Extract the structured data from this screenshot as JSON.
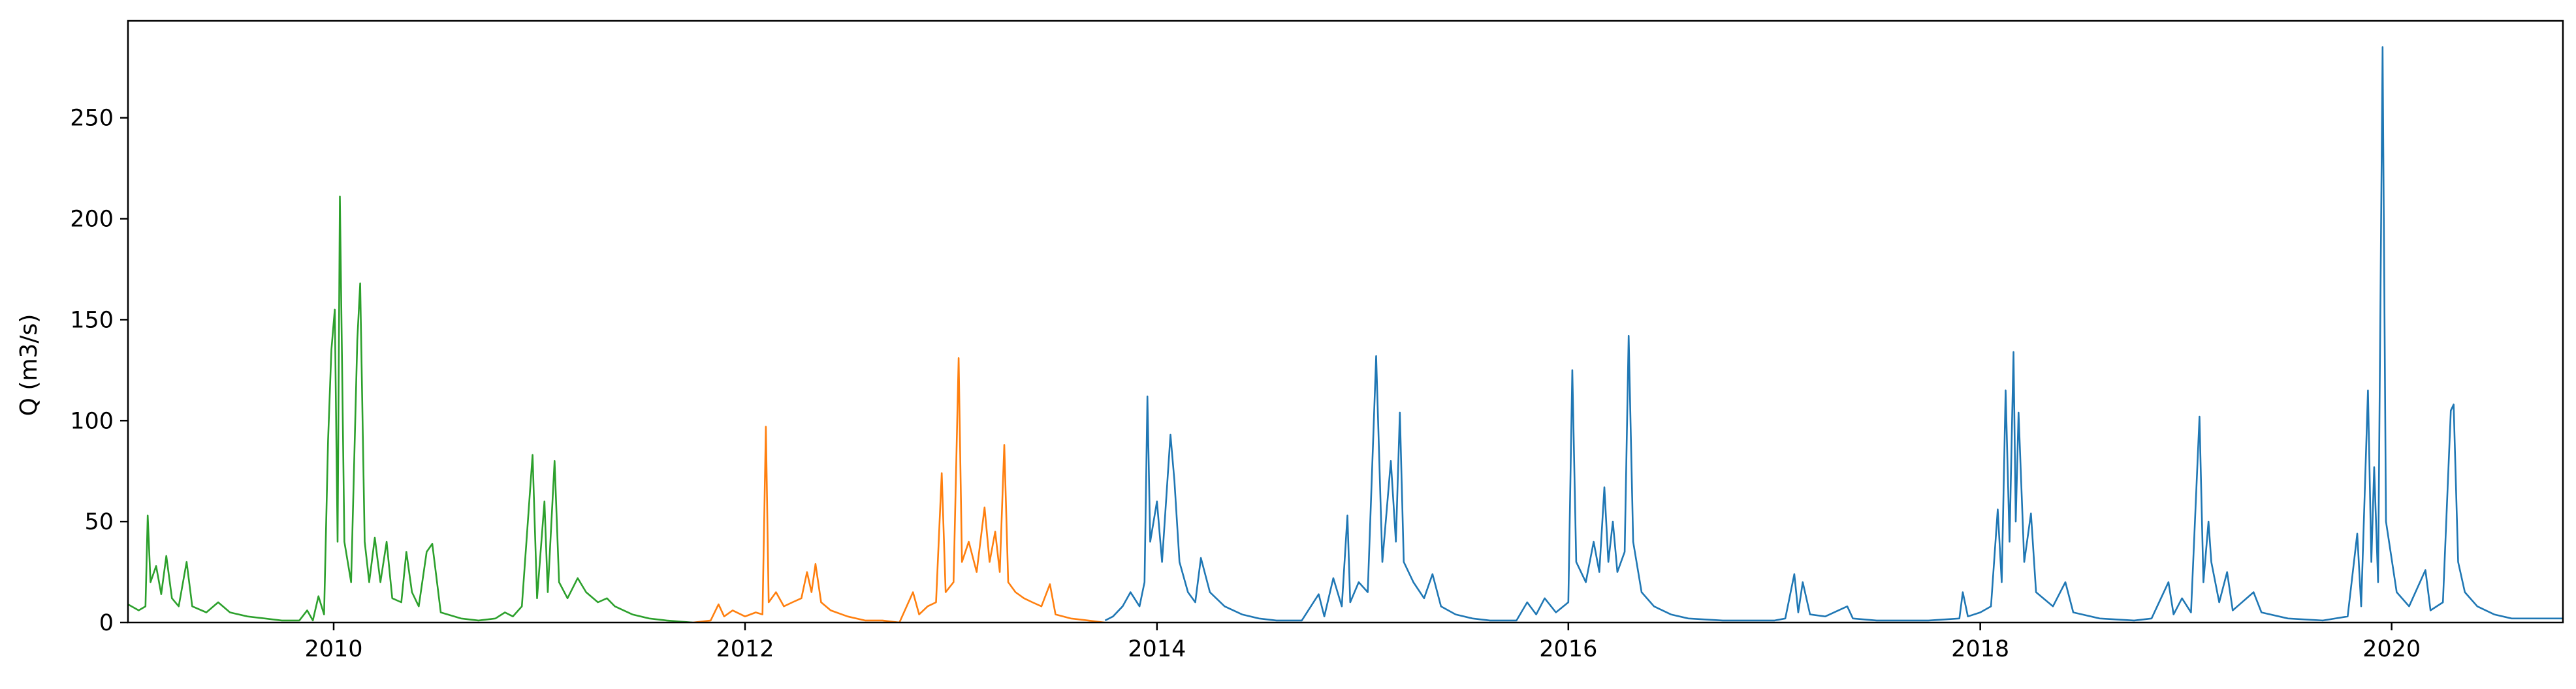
{
  "chart_data": {
    "type": "line",
    "title": "",
    "xlabel": "",
    "ylabel": "Q (m3/s)",
    "xlim": [
      "2009-01-01",
      "2020-10-31"
    ],
    "ylim": [
      0,
      298
    ],
    "x_ticks": [
      "2010",
      "2012",
      "2014",
      "2016",
      "2018",
      "2020"
    ],
    "y_ticks": [
      0,
      50,
      100,
      150,
      200,
      250
    ],
    "grid": false,
    "legend": "none",
    "series": [
      {
        "color": "#2ca02c",
        "points": [
          [
            "2009-01-01",
            9
          ],
          [
            "2009-01-20",
            6
          ],
          [
            "2009-02-01",
            8
          ],
          [
            "2009-02-05",
            53
          ],
          [
            "2009-02-10",
            20
          ],
          [
            "2009-02-20",
            28
          ],
          [
            "2009-03-01",
            14
          ],
          [
            "2009-03-10",
            33
          ],
          [
            "2009-03-20",
            12
          ],
          [
            "2009-04-01",
            8
          ],
          [
            "2009-04-15",
            30
          ],
          [
            "2009-04-25",
            8
          ],
          [
            "2009-05-20",
            5
          ],
          [
            "2009-06-10",
            10
          ],
          [
            "2009-07-01",
            5
          ],
          [
            "2009-08-01",
            3
          ],
          [
            "2009-09-01",
            2
          ],
          [
            "2009-10-01",
            1
          ],
          [
            "2009-11-01",
            1
          ],
          [
            "2009-11-15",
            6
          ],
          [
            "2009-11-25",
            1
          ],
          [
            "2009-12-05",
            13
          ],
          [
            "2009-12-15",
            4
          ],
          [
            "2009-12-22",
            90
          ],
          [
            "2009-12-28",
            135
          ],
          [
            "2010-01-03",
            155
          ],
          [
            "2010-01-08",
            40
          ],
          [
            "2010-01-12",
            211
          ],
          [
            "2010-01-20",
            40
          ],
          [
            "2010-02-01",
            20
          ],
          [
            "2010-02-12",
            140
          ],
          [
            "2010-02-17",
            168
          ],
          [
            "2010-02-25",
            40
          ],
          [
            "2010-03-05",
            20
          ],
          [
            "2010-03-15",
            42
          ],
          [
            "2010-03-25",
            20
          ],
          [
            "2010-04-05",
            40
          ],
          [
            "2010-04-15",
            12
          ],
          [
            "2010-05-01",
            10
          ],
          [
            "2010-05-10",
            35
          ],
          [
            "2010-05-20",
            15
          ],
          [
            "2010-06-01",
            8
          ],
          [
            "2010-06-15",
            35
          ],
          [
            "2010-06-25",
            39
          ],
          [
            "2010-07-10",
            5
          ],
          [
            "2010-08-15",
            2
          ],
          [
            "2010-09-15",
            1
          ],
          [
            "2010-10-15",
            2
          ],
          [
            "2010-11-01",
            5
          ],
          [
            "2010-11-15",
            3
          ],
          [
            "2010-12-01",
            8
          ],
          [
            "2010-12-20",
            83
          ],
          [
            "2010-12-28",
            12
          ],
          [
            "2011-01-10",
            60
          ],
          [
            "2011-01-16",
            15
          ],
          [
            "2011-01-28",
            80
          ],
          [
            "2011-02-05",
            20
          ],
          [
            "2011-02-20",
            12
          ],
          [
            "2011-03-10",
            22
          ],
          [
            "2011-03-25",
            15
          ],
          [
            "2011-04-15",
            10
          ],
          [
            "2011-05-01",
            12
          ],
          [
            "2011-05-15",
            8
          ],
          [
            "2011-06-15",
            4
          ],
          [
            "2011-07-15",
            2
          ],
          [
            "2011-08-15",
            1
          ],
          [
            "2011-09-30",
            0
          ]
        ]
      },
      {
        "color": "#ff7f0e",
        "points": [
          [
            "2011-10-01",
            0
          ],
          [
            "2011-11-01",
            1
          ],
          [
            "2011-11-15",
            9
          ],
          [
            "2011-11-25",
            3
          ],
          [
            "2011-12-10",
            6
          ],
          [
            "2012-01-01",
            3
          ],
          [
            "2012-01-20",
            5
          ],
          [
            "2012-02-01",
            4
          ],
          [
            "2012-02-07",
            97
          ],
          [
            "2012-02-12",
            10
          ],
          [
            "2012-02-25",
            15
          ],
          [
            "2012-03-10",
            8
          ],
          [
            "2012-03-25",
            10
          ],
          [
            "2012-04-10",
            12
          ],
          [
            "2012-04-20",
            25
          ],
          [
            "2012-04-28",
            15
          ],
          [
            "2012-05-05",
            29
          ],
          [
            "2012-05-15",
            10
          ],
          [
            "2012-06-01",
            6
          ],
          [
            "2012-07-01",
            3
          ],
          [
            "2012-08-01",
            1
          ],
          [
            "2012-09-01",
            1
          ],
          [
            "2012-10-01",
            0
          ],
          [
            "2012-10-25",
            15
          ],
          [
            "2012-11-05",
            4
          ],
          [
            "2012-11-20",
            8
          ],
          [
            "2012-12-05",
            10
          ],
          [
            "2012-12-15",
            74
          ],
          [
            "2012-12-22",
            15
          ],
          [
            "2013-01-05",
            20
          ],
          [
            "2013-01-14",
            131
          ],
          [
            "2013-01-20",
            30
          ],
          [
            "2013-02-01",
            40
          ],
          [
            "2013-02-15",
            25
          ],
          [
            "2013-03-01",
            57
          ],
          [
            "2013-03-10",
            30
          ],
          [
            "2013-03-20",
            45
          ],
          [
            "2013-03-28",
            25
          ],
          [
            "2013-04-05",
            88
          ],
          [
            "2013-04-12",
            20
          ],
          [
            "2013-04-25",
            15
          ],
          [
            "2013-05-10",
            12
          ],
          [
            "2013-05-25",
            10
          ],
          [
            "2013-06-10",
            8
          ],
          [
            "2013-06-25",
            19
          ],
          [
            "2013-07-05",
            4
          ],
          [
            "2013-08-01",
            2
          ],
          [
            "2013-09-01",
            1
          ],
          [
            "2013-09-30",
            0
          ]
        ]
      },
      {
        "color": "#1f77b4",
        "points": [
          [
            "2013-10-01",
            1
          ],
          [
            "2013-10-15",
            3
          ],
          [
            "2013-11-01",
            8
          ],
          [
            "2013-11-15",
            15
          ],
          [
            "2013-12-01",
            8
          ],
          [
            "2013-12-10",
            20
          ],
          [
            "2013-12-15",
            112
          ],
          [
            "2013-12-20",
            40
          ],
          [
            "2014-01-01",
            60
          ],
          [
            "2014-01-10",
            30
          ],
          [
            "2014-01-25",
            93
          ],
          [
            "2014-02-01",
            70
          ],
          [
            "2014-02-10",
            30
          ],
          [
            "2014-02-25",
            15
          ],
          [
            "2014-03-10",
            10
          ],
          [
            "2014-03-20",
            32
          ],
          [
            "2014-04-05",
            15
          ],
          [
            "2014-05-01",
            8
          ],
          [
            "2014-06-01",
            4
          ],
          [
            "2014-07-01",
            2
          ],
          [
            "2014-08-01",
            1
          ],
          [
            "2014-09-15",
            1
          ],
          [
            "2014-10-15",
            14
          ],
          [
            "2014-10-25",
            3
          ],
          [
            "2014-11-10",
            22
          ],
          [
            "2014-11-25",
            8
          ],
          [
            "2014-12-05",
            53
          ],
          [
            "2014-12-10",
            10
          ],
          [
            "2014-12-25",
            20
          ],
          [
            "2015-01-10",
            15
          ],
          [
            "2015-01-25",
            132
          ],
          [
            "2015-02-05",
            30
          ],
          [
            "2015-02-20",
            80
          ],
          [
            "2015-03-01",
            40
          ],
          [
            "2015-03-08",
            104
          ],
          [
            "2015-03-15",
            30
          ],
          [
            "2015-04-01",
            20
          ],
          [
            "2015-04-20",
            12
          ],
          [
            "2015-05-05",
            24
          ],
          [
            "2015-05-20",
            8
          ],
          [
            "2015-06-15",
            4
          ],
          [
            "2015-07-15",
            2
          ],
          [
            "2015-08-15",
            1
          ],
          [
            "2015-10-01",
            1
          ],
          [
            "2015-10-20",
            10
          ],
          [
            "2015-11-05",
            4
          ],
          [
            "2015-11-20",
            12
          ],
          [
            "2015-12-10",
            5
          ],
          [
            "2016-01-01",
            10
          ],
          [
            "2016-01-08",
            125
          ],
          [
            "2016-01-15",
            30
          ],
          [
            "2016-02-01",
            20
          ],
          [
            "2016-02-15",
            40
          ],
          [
            "2016-02-25",
            25
          ],
          [
            "2016-03-05",
            67
          ],
          [
            "2016-03-12",
            30
          ],
          [
            "2016-03-20",
            50
          ],
          [
            "2016-03-28",
            25
          ],
          [
            "2016-04-10",
            35
          ],
          [
            "2016-04-17",
            142
          ],
          [
            "2016-04-25",
            40
          ],
          [
            "2016-05-10",
            15
          ],
          [
            "2016-06-01",
            8
          ],
          [
            "2016-07-01",
            4
          ],
          [
            "2016-08-01",
            2
          ],
          [
            "2016-10-01",
            1
          ],
          [
            "2017-01-01",
            1
          ],
          [
            "2017-01-20",
            2
          ],
          [
            "2017-02-05",
            24
          ],
          [
            "2017-02-12",
            5
          ],
          [
            "2017-02-20",
            20
          ],
          [
            "2017-03-05",
            4
          ],
          [
            "2017-04-01",
            3
          ],
          [
            "2017-05-10",
            8
          ],
          [
            "2017-05-20",
            2
          ],
          [
            "2017-07-01",
            1
          ],
          [
            "2017-10-01",
            1
          ],
          [
            "2017-11-25",
            2
          ],
          [
            "2017-12-01",
            15
          ],
          [
            "2017-12-10",
            3
          ],
          [
            "2018-01-01",
            5
          ],
          [
            "2018-01-20",
            8
          ],
          [
            "2018-02-01",
            56
          ],
          [
            "2018-02-08",
            20
          ],
          [
            "2018-02-15",
            115
          ],
          [
            "2018-02-22",
            40
          ],
          [
            "2018-03-01",
            134
          ],
          [
            "2018-03-05",
            50
          ],
          [
            "2018-03-10",
            104
          ],
          [
            "2018-03-20",
            30
          ],
          [
            "2018-04-01",
            54
          ],
          [
            "2018-04-10",
            15
          ],
          [
            "2018-05-10",
            8
          ],
          [
            "2018-06-01",
            20
          ],
          [
            "2018-06-15",
            5
          ],
          [
            "2018-08-01",
            2
          ],
          [
            "2018-10-01",
            1
          ],
          [
            "2018-11-01",
            2
          ],
          [
            "2018-12-01",
            20
          ],
          [
            "2018-12-10",
            4
          ],
          [
            "2018-12-25",
            12
          ],
          [
            "2019-01-10",
            5
          ],
          [
            "2019-01-25",
            102
          ],
          [
            "2019-02-01",
            20
          ],
          [
            "2019-02-10",
            50
          ],
          [
            "2019-02-15",
            30
          ],
          [
            "2019-03-01",
            10
          ],
          [
            "2019-03-15",
            25
          ],
          [
            "2019-03-25",
            6
          ],
          [
            "2019-05-01",
            15
          ],
          [
            "2019-05-15",
            5
          ],
          [
            "2019-07-01",
            2
          ],
          [
            "2019-09-01",
            1
          ],
          [
            "2019-10-15",
            3
          ],
          [
            "2019-11-01",
            44
          ],
          [
            "2019-11-08",
            8
          ],
          [
            "2019-11-20",
            115
          ],
          [
            "2019-11-26",
            30
          ],
          [
            "2019-12-01",
            77
          ],
          [
            "2019-12-08",
            20
          ],
          [
            "2019-12-16",
            285
          ],
          [
            "2019-12-22",
            50
          ],
          [
            "2020-01-10",
            15
          ],
          [
            "2020-02-01",
            8
          ],
          [
            "2020-03-01",
            26
          ],
          [
            "2020-03-10",
            6
          ],
          [
            "2020-04-01",
            10
          ],
          [
            "2020-04-15",
            105
          ],
          [
            "2020-04-20",
            108
          ],
          [
            "2020-04-28",
            30
          ],
          [
            "2020-05-10",
            15
          ],
          [
            "2020-06-01",
            8
          ],
          [
            "2020-07-01",
            4
          ],
          [
            "2020-08-01",
            2
          ],
          [
            "2020-10-31",
            2
          ]
        ]
      }
    ]
  }
}
